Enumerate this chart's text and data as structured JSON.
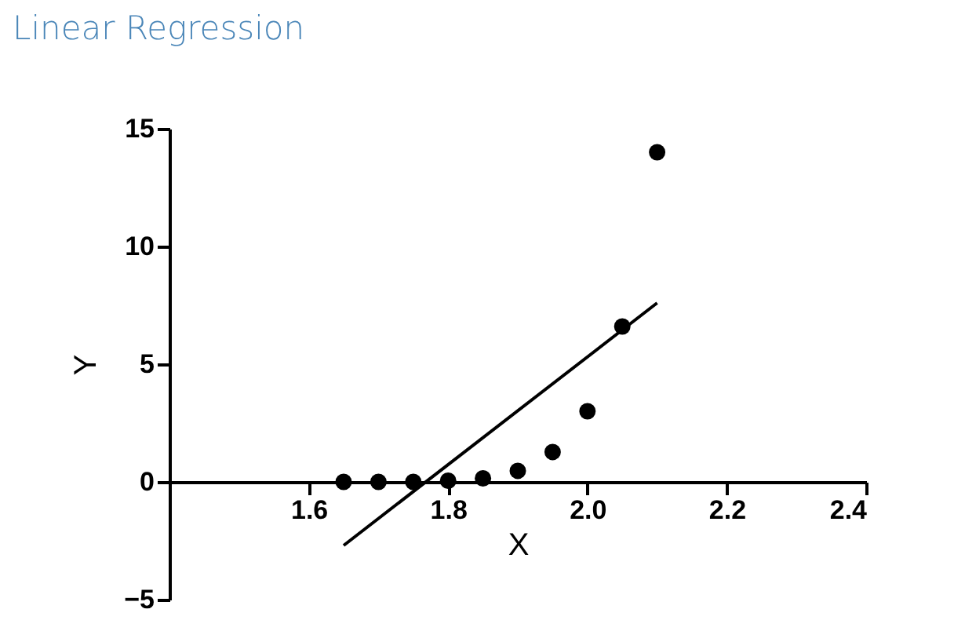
{
  "chart_data": {
    "type": "scatter",
    "title": "Linear Regression",
    "xlabel": "X",
    "ylabel": "Y",
    "x": [
      1.65,
      1.7,
      1.75,
      1.8,
      1.85,
      1.9,
      1.95,
      2.0,
      2.05,
      2.1
    ],
    "series": [
      {
        "color": "#000000",
        "values": [
          0,
          0,
          0,
          0.05,
          0.15,
          0.47,
          1.27,
          3.0,
          6.6,
          14.0
        ]
      },
      {
        "type": "line",
        "marker": "none",
        "color": "#000000",
        "x": [
          1.65,
          2.1
        ],
        "values": [
          -2.7,
          7.6
        ]
      }
    ],
    "xlim": [
      1.4,
      2.4
    ],
    "xticks": [
      1.6,
      1.8,
      {
        "value": 2,
        "label": "2.0"
      },
      2.2,
      2.4
    ],
    "ylim": [
      -5,
      15
    ],
    "yticks": [
      -5,
      0,
      5,
      10,
      15
    ],
    "marker": "circle",
    "line_style": "solid",
    "grid": false
  }
}
